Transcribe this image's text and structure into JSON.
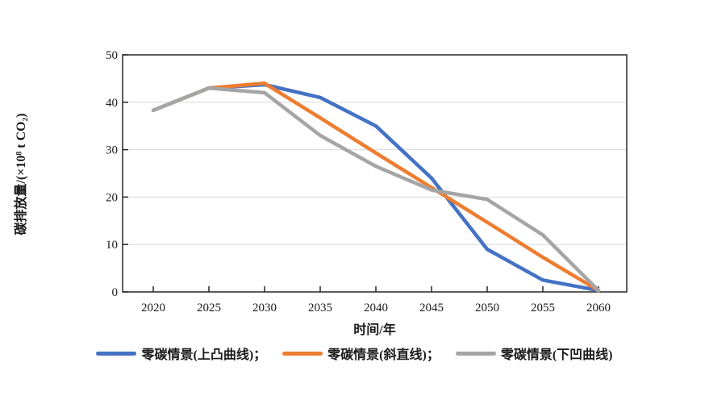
{
  "chart_data": {
    "type": "line",
    "title": "",
    "xlabel": "时间/年",
    "ylabel": "碳排放量/(×10⁸ t CO₂)",
    "x": [
      2020,
      2025,
      2030,
      2035,
      2040,
      2045,
      2050,
      2055,
      2060
    ],
    "x_tick_labels": [
      "2020",
      "2025",
      "2030",
      "2035",
      "2040",
      "2045",
      "2050",
      "2055",
      "2060"
    ],
    "y_ticks": [
      0,
      10,
      20,
      30,
      40,
      50
    ],
    "ylim": [
      0,
      50
    ],
    "grid": "horizontal",
    "legend_position": "bottom",
    "series": [
      {
        "name": "零碳情景(上凸曲线)",
        "legend_label": "零碳情景(上凸曲线)；",
        "color": "#4472C4",
        "values": [
          38.3,
          43,
          43.7,
          41,
          35,
          24,
          9,
          2.5,
          0.3
        ]
      },
      {
        "name": "零碳情景(斜直线)",
        "legend_label": "零碳情景(斜直线)；",
        "color": "#ED7D31",
        "values": [
          38.3,
          43,
          44,
          36.7,
          29.3,
          22,
          14.7,
          7.3,
          0.3
        ]
      },
      {
        "name": "零碳情景(下凹曲线)",
        "legend_label": "零碳情景(下凹曲线)",
        "color": "#A5A5A5",
        "values": [
          38.3,
          43,
          42,
          33,
          26.5,
          21.5,
          19.5,
          12,
          0.3
        ]
      }
    ]
  },
  "colors": {
    "axis": "#262626",
    "grid": "#d9d9d9",
    "background": "#ffffff"
  }
}
